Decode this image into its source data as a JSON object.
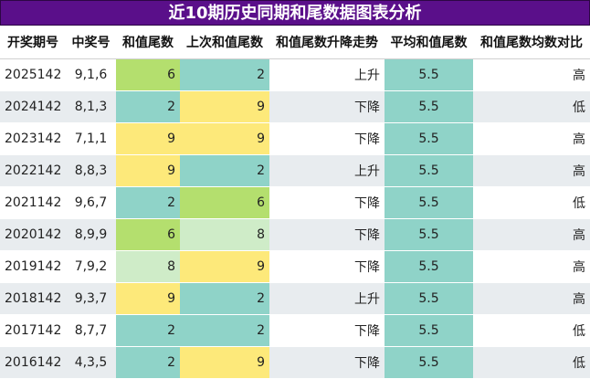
{
  "title": "近10期历史同期和尾数据图表分析",
  "headers": [
    "开奖期号",
    "中奖号",
    "和值尾数",
    "上次和值尾数",
    "和值尾数升降走势",
    "平均和值尾数",
    "和值尾数均数对比"
  ],
  "colors": {
    "title_bg": "#5a0f8a",
    "teal": "#8fd3c8",
    "green": "#b4df6e",
    "yellow": "#fde97a",
    "lightgreen": "#cfecc8",
    "stripe": "#e8ecef"
  },
  "rows": [
    {
      "issue": "2025142",
      "numbers": "9,1,6",
      "tail": "6",
      "tail_color": "green",
      "prev_tail": "2",
      "prev_color": "teal",
      "trend": "上升",
      "avg": "5.5",
      "compare": "高"
    },
    {
      "issue": "2024142",
      "numbers": "8,1,3",
      "tail": "2",
      "tail_color": "teal",
      "prev_tail": "9",
      "prev_color": "yellow",
      "trend": "下降",
      "avg": "5.5",
      "compare": "低"
    },
    {
      "issue": "2023142",
      "numbers": "7,1,1",
      "tail": "9",
      "tail_color": "yellow",
      "prev_tail": "9",
      "prev_color": "yellow",
      "trend": "下降",
      "avg": "5.5",
      "compare": "高"
    },
    {
      "issue": "2022142",
      "numbers": "8,8,3",
      "tail": "9",
      "tail_color": "yellow",
      "prev_tail": "2",
      "prev_color": "teal",
      "trend": "上升",
      "avg": "5.5",
      "compare": "高"
    },
    {
      "issue": "2021142",
      "numbers": "9,6,7",
      "tail": "2",
      "tail_color": "teal",
      "prev_tail": "6",
      "prev_color": "green",
      "trend": "下降",
      "avg": "5.5",
      "compare": "低"
    },
    {
      "issue": "2020142",
      "numbers": "8,9,9",
      "tail": "6",
      "tail_color": "green",
      "prev_tail": "8",
      "prev_color": "lightgreen",
      "trend": "下降",
      "avg": "5.5",
      "compare": "高"
    },
    {
      "issue": "2019142",
      "numbers": "7,9,2",
      "tail": "8",
      "tail_color": "lightgreen",
      "prev_tail": "9",
      "prev_color": "yellow",
      "trend": "下降",
      "avg": "5.5",
      "compare": "高"
    },
    {
      "issue": "2018142",
      "numbers": "9,3,7",
      "tail": "9",
      "tail_color": "yellow",
      "prev_tail": "2",
      "prev_color": "teal",
      "trend": "上升",
      "avg": "5.5",
      "compare": "高"
    },
    {
      "issue": "2017142",
      "numbers": "8,7,7",
      "tail": "2",
      "tail_color": "teal",
      "prev_tail": "2",
      "prev_color": "teal",
      "trend": "下降",
      "avg": "5.5",
      "compare": "低"
    },
    {
      "issue": "2016142",
      "numbers": "4,3,5",
      "tail": "2",
      "tail_color": "teal",
      "prev_tail": "9",
      "prev_color": "yellow",
      "trend": "下降",
      "avg": "5.5",
      "compare": "低"
    }
  ]
}
